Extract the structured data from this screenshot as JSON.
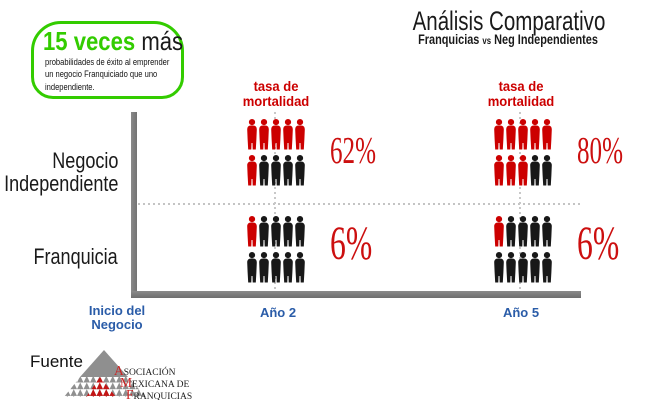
{
  "badge": {
    "headline_highlight": "15 veces",
    "headline_rest": " más",
    "body_lines": [
      "probabilidades de éxito al emprender",
      "un negocio Franquiciado que uno",
      "independiente."
    ]
  },
  "header": {
    "title": "Análisis Comparativo",
    "subtitle_parts": [
      "Franquicias",
      "vs",
      "Neg Independientes"
    ]
  },
  "chart_data": {
    "type": "pictogram",
    "title": "Análisis Comparativo",
    "subtitle": "Franquicias vs Neg Independientes",
    "row_labels": [
      [
        "Negocio",
        "Independiente"
      ],
      [
        "Franquicia"
      ]
    ],
    "columns": [
      "Año 2",
      "Año 5"
    ],
    "origin_label_lines": [
      "Inicio del",
      "Negocio"
    ],
    "column_header_lines": [
      "tasa de",
      "mortalidad"
    ],
    "icons_per_cell": 10,
    "icons_per_row": 5,
    "cells": [
      {
        "row": "Negocio Independiente",
        "col": "Año 2",
        "value_pct": 62,
        "label": "62%",
        "red_icons": 6
      },
      {
        "row": "Negocio Independiente",
        "col": "Año 5",
        "value_pct": 80,
        "label": "80%",
        "red_icons": 8
      },
      {
        "row": "Franquicia",
        "col": "Año 2",
        "value_pct": 6,
        "label": "6%",
        "red_icons": 1
      },
      {
        "row": "Franquicia",
        "col": "Año 5",
        "value_pct": 6,
        "label": "6%",
        "red_icons": 1
      }
    ],
    "colors": {
      "highlight": "#cc0000",
      "muted": "#181818",
      "axis": "#7f7f7f",
      "labels_blue": "#2a5ca8",
      "green": "#33cc00"
    }
  },
  "source": {
    "label": "Fuente",
    "logo_lines": [
      {
        "i": "A",
        "rest": "SOCIACIÓN"
      },
      {
        "i": "M",
        "rest": "EXICANA DE"
      },
      {
        "i": "F",
        "rest": "RANQUICIAS"
      }
    ]
  }
}
